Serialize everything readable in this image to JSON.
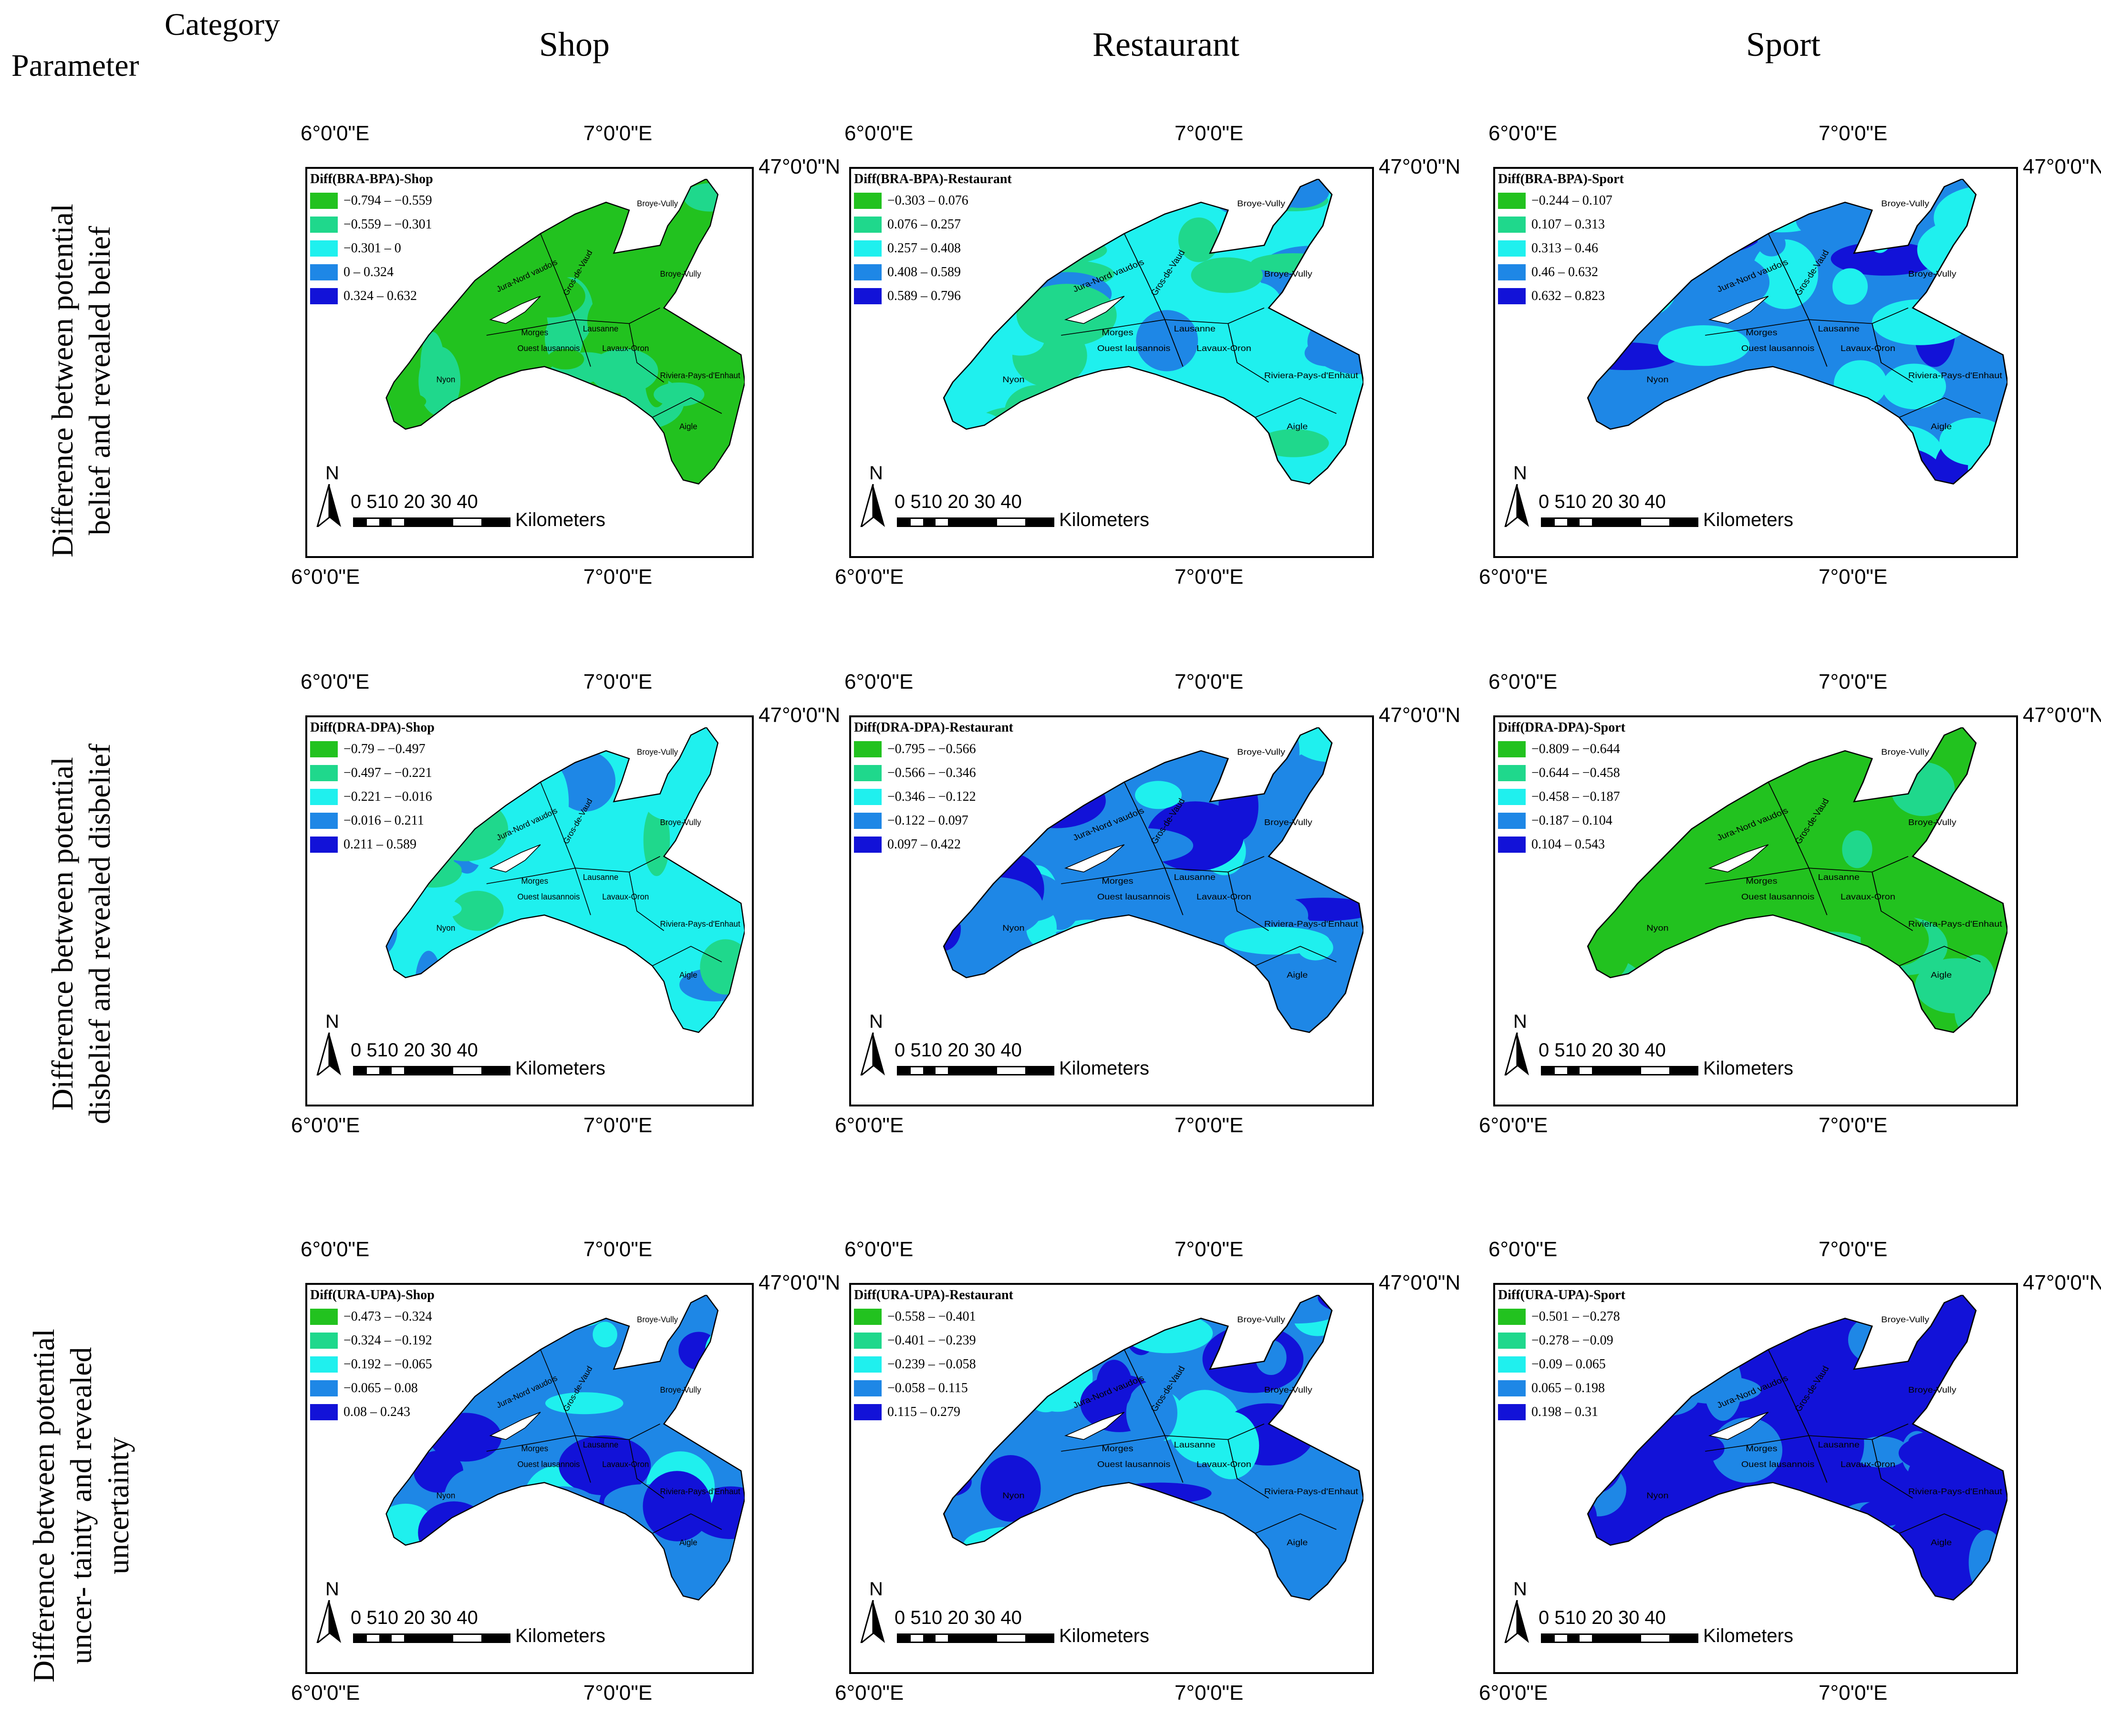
{
  "header": {
    "parameter_label": "Parameter",
    "category_label": "Category",
    "columns": [
      "Shop",
      "Restaurant",
      "Sport"
    ]
  },
  "rows": [
    "Difference between potential belief and revealed belief",
    "Difference between potential disbelief and revealed disbelief",
    "Difference between potential uncer- tainty and revealed uncertainty"
  ],
  "palette": [
    "#22c21f",
    "#1fd88c",
    "#1ff0ee",
    "#1e87e6",
    "#1212d8"
  ],
  "coords": {
    "lon_left": "6°0'0\"E",
    "lon_right": "7°0'0\"E",
    "lat": "47°0'0\"N"
  },
  "scale": {
    "numbers": "0 510  20  30  40",
    "unit": "Kilometers",
    "north": "N"
  },
  "regions": [
    "Jura-Nord vaudois",
    "Broye-Vully",
    "Broye-Vully",
    "Gros-de-Vaud",
    "Morges",
    "Lausanne",
    "Ouest lausannois",
    "Lavaux-Oron",
    "Nyon",
    "Riviera-Pays-d'Enhaut",
    "Aigle"
  ],
  "panels": [
    {
      "title": "Diff(BRA-BPA)-Shop",
      "classes": [
        "−0.794 – −0.559",
        "−0.559 – −0.301",
        "−0.301 – 0",
        "0 – 0.324",
        "0.324 – 0.632"
      ],
      "dominant": 0
    },
    {
      "title": "Diff(BRA-BPA)-Restaurant",
      "classes": [
        "−0.303 – 0.076",
        "0.076 – 0.257",
        "0.257 – 0.408",
        "0.408 – 0.589",
        "0.589 – 0.796"
      ],
      "dominant": 2
    },
    {
      "title": "Diff(BRA-BPA)-Sport",
      "classes": [
        "−0.244 – 0.107",
        "0.107 – 0.313",
        "0.313 – 0.46",
        "0.46 – 0.632",
        "0.632 – 0.823"
      ],
      "dominant": 3
    },
    {
      "title": "Diff(DRA-DPA)-Shop",
      "classes": [
        "−0.79 – −0.497",
        "−0.497 – −0.221",
        "−0.221 – −0.016",
        "−0.016 – 0.211",
        "0.211 – 0.589"
      ],
      "dominant": 2
    },
    {
      "title": "Diff(DRA-DPA)-Restaurant",
      "classes": [
        "−0.795 – −0.566",
        "−0.566 – −0.346",
        "−0.346 – −0.122",
        "−0.122 – 0.097",
        "0.097 – 0.422"
      ],
      "dominant": 3
    },
    {
      "title": "Diff(DRA-DPA)-Sport",
      "classes": [
        "−0.809 – −0.644",
        "−0.644 – −0.458",
        "−0.458 – −0.187",
        "−0.187 – 0.104",
        "0.104 – 0.543"
      ],
      "dominant": 0
    },
    {
      "title": "Diff(URA-UPA)-Shop",
      "classes": [
        "−0.473 – −0.324",
        "−0.324 – −0.192",
        "−0.192 – −0.065",
        "−0.065 – 0.08",
        "0.08 – 0.243"
      ],
      "dominant": 3
    },
    {
      "title": "Diff(URA-UPA)-Restaurant",
      "classes": [
        "−0.558 – −0.401",
        "−0.401 – −0.239",
        "−0.239 – −0.058",
        "−0.058 – 0.115",
        "0.115 – 0.279"
      ],
      "dominant": 3
    },
    {
      "title": "Diff(URA-UPA)-Sport",
      "classes": [
        "−0.501 – −0.278",
        "−0.278 – −0.09",
        "−0.09 – 0.065",
        "0.065 – 0.198",
        "0.198 – 0.31"
      ],
      "dominant": 4
    }
  ]
}
